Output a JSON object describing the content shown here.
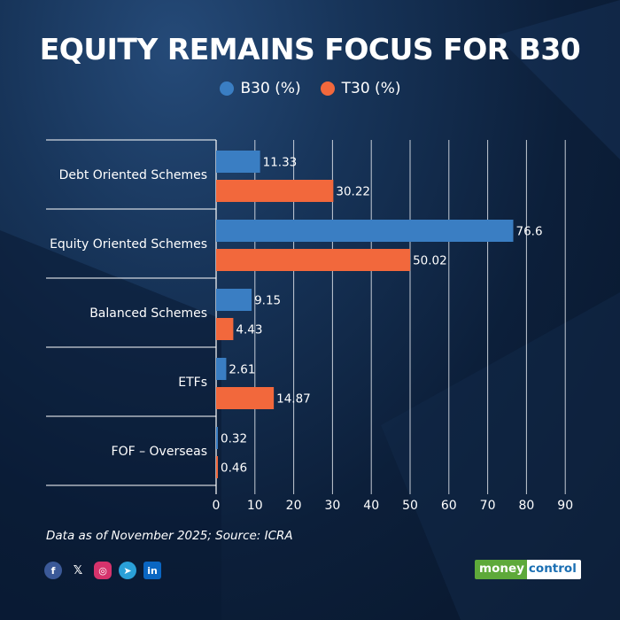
{
  "title": "EQUITY REMAINS FOCUS FOR B30",
  "source": "Data as of November 2025; Source: ICRA",
  "brand": {
    "part1": "money",
    "part2": "control"
  },
  "social_icons": [
    "facebook-icon",
    "x-icon",
    "instagram-icon",
    "telegram-icon",
    "linkedin-icon"
  ],
  "colors": {
    "b30": "#3a7ec3",
    "t30": "#f2683c",
    "text": "#ffffff",
    "grid": "#e5e9ef"
  },
  "chart_data": {
    "type": "bar",
    "orientation": "horizontal",
    "categories": [
      "Debt Oriented Schemes",
      "Equity Oriented Schemes",
      "Balanced Schemes",
      "ETFs",
      "FOF – Overseas"
    ],
    "series": [
      {
        "name": "B30 (%)",
        "values": [
          11.33,
          76.6,
          9.15,
          2.61,
          0.32
        ],
        "labels": [
          "11.33",
          "76.6",
          "9.15",
          "2.61",
          "0.32"
        ]
      },
      {
        "name": "T30 (%)",
        "values": [
          30.22,
          50.02,
          4.43,
          14.87,
          0.46
        ],
        "labels": [
          "30.22",
          "50.02",
          "4.43",
          "14.87",
          "0.46"
        ]
      }
    ],
    "x_ticks": [
      "0",
      "10",
      "20",
      "30",
      "40",
      "50",
      "60",
      "70",
      "80",
      "90"
    ],
    "xlim": [
      0,
      90
    ],
    "title": "EQUITY REMAINS FOCUS FOR B30",
    "xlabel": "",
    "ylabel": "",
    "grid": true,
    "legend_position": "top-center"
  }
}
